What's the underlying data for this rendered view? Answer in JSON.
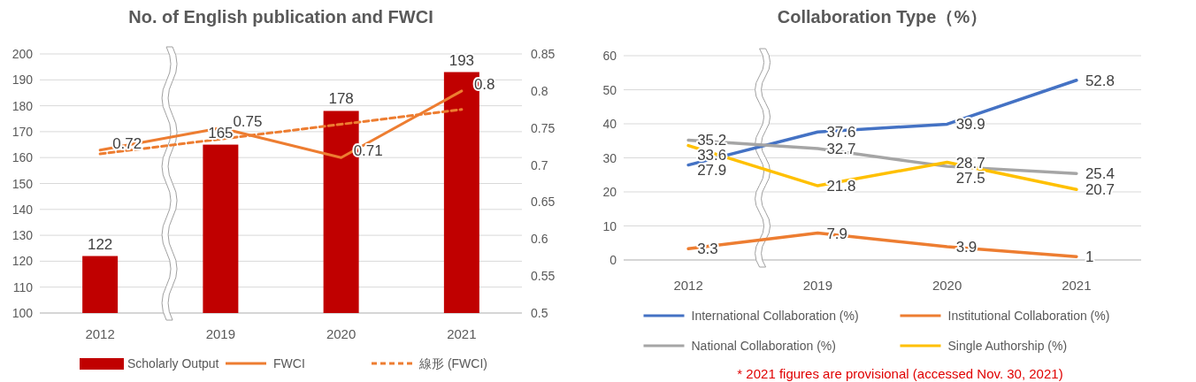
{
  "chart_data": [
    {
      "type": "bar",
      "title": "No. of English publication and FWCI",
      "categories": [
        "2012",
        "2019",
        "2020",
        "2021"
      ],
      "series": [
        {
          "type": "bar",
          "name": "Scholarly Output",
          "color": "#c00000",
          "values": [
            122,
            165,
            178,
            193
          ],
          "value_labels": [
            "122",
            "165",
            "178",
            "193"
          ]
        },
        {
          "type": "line",
          "name": "FWCI",
          "color": "#ed7d31",
          "axis": "y2",
          "values": [
            0.72,
            0.75,
            0.71,
            0.8
          ],
          "value_labels": [
            "0.72",
            "0.75",
            "0.71",
            "0.8"
          ]
        },
        {
          "type": "line",
          "name": "線形 (FWCI)",
          "color": "#ed7d31",
          "axis": "y2",
          "line_style": "dashed",
          "values": [
            0.715,
            0.735,
            0.755,
            0.775
          ]
        }
      ],
      "ylim": [
        100,
        200
      ],
      "yticks": [
        100,
        110,
        120,
        130,
        140,
        150,
        160,
        170,
        180,
        190,
        200
      ],
      "y2lim": [
        0.5,
        0.85
      ],
      "y2ticks": [
        0.5,
        0.55,
        0.6,
        0.65,
        0.7,
        0.75,
        0.8,
        0.85
      ],
      "grid": "y",
      "legend": "bottom"
    },
    {
      "type": "line",
      "title": "Collaboration Type（%）",
      "categories": [
        "2012",
        "2019",
        "2020",
        "2021"
      ],
      "series": [
        {
          "name": "International Collaboration (%)",
          "color": "#4472c4",
          "values": [
            27.9,
            37.6,
            39.9,
            52.8
          ]
        },
        {
          "name": "Institutional Collaboration (%)",
          "color": "#ed7d31",
          "values": [
            3.3,
            7.9,
            3.9,
            1
          ]
        },
        {
          "name": "National Collaboration (%)",
          "color": "#a5a5a5",
          "values": [
            35.2,
            32.7,
            27.5,
            25.4
          ]
        },
        {
          "name": "Single Authorship (%)",
          "color": "#ffc000",
          "values": [
            33.6,
            21.8,
            28.7,
            20.7
          ]
        }
      ],
      "ylim": [
        0,
        60
      ],
      "yticks": [
        0,
        10,
        20,
        30,
        40,
        50,
        60
      ],
      "grid": "y",
      "legend": "bottom",
      "data_labels": true,
      "annotations": [
        "* 2021 figures are provisional (accessed Nov. 30, 2021)"
      ]
    }
  ]
}
